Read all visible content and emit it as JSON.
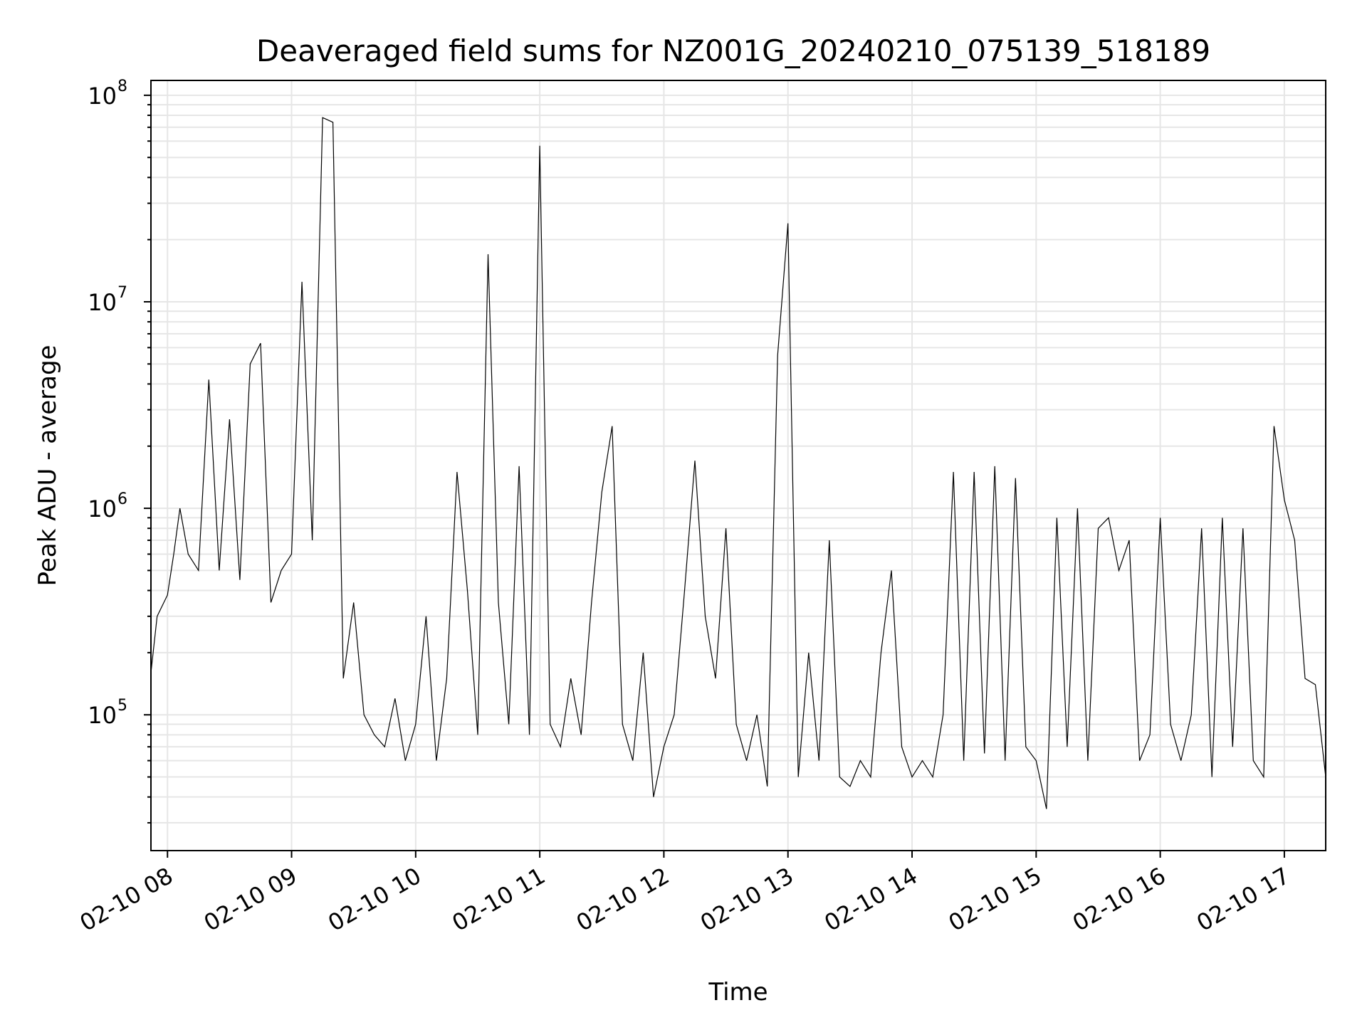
{
  "chart_data": {
    "type": "line",
    "title": "Deaveraged field sums for NZ001G_20240210_075139_518189",
    "xlabel": "Time",
    "ylabel": "Peak ADU - average",
    "yscale": "log",
    "ylim": [
      22000,
      118000000
    ],
    "xlim": [
      "2024-02-10 07:52",
      "2024-02-10 17:20"
    ],
    "grid": true,
    "line_color": "#000000",
    "x_ticks": [
      {
        "value": "2024-02-10 08:00",
        "label": "02-10 08"
      },
      {
        "value": "2024-02-10 09:00",
        "label": "02-10 09"
      },
      {
        "value": "2024-02-10 10:00",
        "label": "02-10 10"
      },
      {
        "value": "2024-02-10 11:00",
        "label": "02-10 11"
      },
      {
        "value": "2024-02-10 12:00",
        "label": "02-10 12"
      },
      {
        "value": "2024-02-10 13:00",
        "label": "02-10 13"
      },
      {
        "value": "2024-02-10 14:00",
        "label": "02-10 14"
      },
      {
        "value": "2024-02-10 15:00",
        "label": "02-10 15"
      },
      {
        "value": "2024-02-10 16:00",
        "label": "02-10 16"
      },
      {
        "value": "2024-02-10 17:00",
        "label": "02-10 17"
      }
    ],
    "y_ticks": [
      {
        "value": 100000,
        "base": "10",
        "exp": "5"
      },
      {
        "value": 1000000,
        "base": "10",
        "exp": "6"
      },
      {
        "value": 10000000,
        "base": "10",
        "exp": "7"
      },
      {
        "value": 100000000,
        "base": "10",
        "exp": "8"
      }
    ],
    "series": [
      {
        "x": [
          "2024-02-10 07:52",
          "2024-02-10 07:55",
          "2024-02-10 08:00",
          "2024-02-10 08:03",
          "2024-02-10 08:06",
          "2024-02-10 08:10",
          "2024-02-10 08:15",
          "2024-02-10 08:20",
          "2024-02-10 08:25",
          "2024-02-10 08:30",
          "2024-02-10 08:35",
          "2024-02-10 08:40",
          "2024-02-10 08:45",
          "2024-02-10 08:50",
          "2024-02-10 08:55",
          "2024-02-10 09:00",
          "2024-02-10 09:05",
          "2024-02-10 09:10",
          "2024-02-10 09:15",
          "2024-02-10 09:20",
          "2024-02-10 09:25",
          "2024-02-10 09:30",
          "2024-02-10 09:35",
          "2024-02-10 09:40",
          "2024-02-10 09:45",
          "2024-02-10 09:50",
          "2024-02-10 09:55",
          "2024-02-10 10:00",
          "2024-02-10 10:05",
          "2024-02-10 10:10",
          "2024-02-10 10:15",
          "2024-02-10 10:20",
          "2024-02-10 10:25",
          "2024-02-10 10:30",
          "2024-02-10 10:35",
          "2024-02-10 10:40",
          "2024-02-10 10:45",
          "2024-02-10 10:50",
          "2024-02-10 10:55",
          "2024-02-10 11:00",
          "2024-02-10 11:05",
          "2024-02-10 11:10",
          "2024-02-10 11:15",
          "2024-02-10 11:20",
          "2024-02-10 11:25",
          "2024-02-10 11:30",
          "2024-02-10 11:35",
          "2024-02-10 11:40",
          "2024-02-10 11:45",
          "2024-02-10 11:50",
          "2024-02-10 11:55",
          "2024-02-10 12:00",
          "2024-02-10 12:05",
          "2024-02-10 12:10",
          "2024-02-10 12:15",
          "2024-02-10 12:20",
          "2024-02-10 12:25",
          "2024-02-10 12:30",
          "2024-02-10 12:35",
          "2024-02-10 12:40",
          "2024-02-10 12:45",
          "2024-02-10 12:50",
          "2024-02-10 12:55",
          "2024-02-10 13:00",
          "2024-02-10 13:05",
          "2024-02-10 13:10",
          "2024-02-10 13:15",
          "2024-02-10 13:20",
          "2024-02-10 13:25",
          "2024-02-10 13:30",
          "2024-02-10 13:35",
          "2024-02-10 13:40",
          "2024-02-10 13:45",
          "2024-02-10 13:50",
          "2024-02-10 13:55",
          "2024-02-10 14:00",
          "2024-02-10 14:05",
          "2024-02-10 14:10",
          "2024-02-10 14:15",
          "2024-02-10 14:20",
          "2024-02-10 14:25",
          "2024-02-10 14:30",
          "2024-02-10 14:35",
          "2024-02-10 14:40",
          "2024-02-10 14:45",
          "2024-02-10 14:50",
          "2024-02-10 14:55",
          "2024-02-10 15:00",
          "2024-02-10 15:05",
          "2024-02-10 15:10",
          "2024-02-10 15:15",
          "2024-02-10 15:20",
          "2024-02-10 15:25",
          "2024-02-10 15:30",
          "2024-02-10 15:35",
          "2024-02-10 15:40",
          "2024-02-10 15:45",
          "2024-02-10 15:50",
          "2024-02-10 15:55",
          "2024-02-10 16:00",
          "2024-02-10 16:05",
          "2024-02-10 16:10",
          "2024-02-10 16:15",
          "2024-02-10 16:20",
          "2024-02-10 16:25",
          "2024-02-10 16:30",
          "2024-02-10 16:35",
          "2024-02-10 16:40",
          "2024-02-10 16:45",
          "2024-02-10 16:50",
          "2024-02-10 16:55",
          "2024-02-10 17:00",
          "2024-02-10 17:05",
          "2024-02-10 17:10",
          "2024-02-10 17:15",
          "2024-02-10 17:20"
        ],
        "y": [
          160000,
          300000,
          380000,
          600000,
          1000000,
          600000,
          500000,
          4200000,
          500000,
          2700000,
          450000,
          5000000,
          6300000,
          350000,
          500000,
          600000,
          12500000,
          700000,
          78000000,
          74000000,
          150000,
          350000,
          100000,
          80000,
          70000,
          120000,
          60000,
          90000,
          300000,
          60000,
          150000,
          1500000,
          400000,
          80000,
          17000000,
          350000,
          90000,
          1600000,
          80000,
          57000000,
          90000,
          70000,
          150000,
          80000,
          350000,
          1200000,
          2500000,
          90000,
          60000,
          200000,
          40000,
          70000,
          100000,
          400000,
          1700000,
          300000,
          150000,
          800000,
          90000,
          60000,
          100000,
          45000,
          5500000,
          24000000,
          50000,
          200000,
          60000,
          700000,
          50000,
          45000,
          60000,
          50000,
          200000,
          500000,
          70000,
          50000,
          60000,
          50000,
          100000,
          1500000,
          60000,
          1500000,
          65000,
          1600000,
          60000,
          1400000,
          70000,
          60000,
          35000,
          900000,
          70000,
          1000000,
          60000,
          800000,
          900000,
          500000,
          700000,
          60000,
          80000,
          900000,
          90000,
          60000,
          100000,
          800000,
          50000,
          900000,
          70000,
          800000,
          60000,
          50000,
          2500000,
          1100000,
          700000,
          150000,
          140000,
          50000
        ]
      }
    ]
  }
}
